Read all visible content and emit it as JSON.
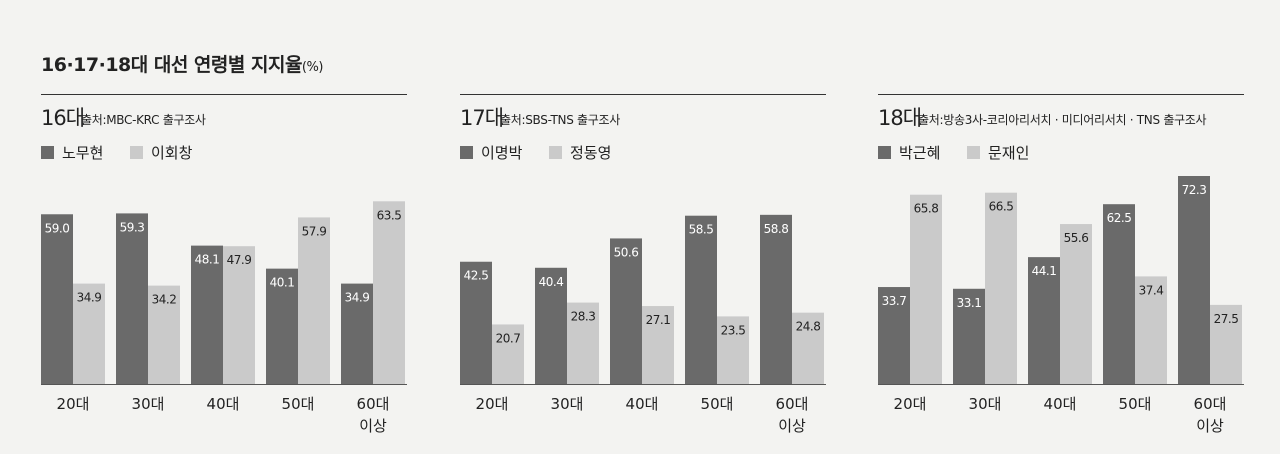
{
  "title": "16·17·18대 대선 연령별 지지율",
  "title_unit": "(%)",
  "chart_data": [
    {
      "type": "bar",
      "title": "16대",
      "subtitle": "출처:MBC-KRC 출구조사",
      "categories": [
        [
          "20대"
        ],
        [
          "30대"
        ],
        [
          "40대"
        ],
        [
          "50대"
        ],
        [
          "60대",
          "이상"
        ]
      ],
      "series": [
        {
          "name": "노무현",
          "color": "#6a6a6a",
          "values": [
            59.0,
            59.3,
            48.1,
            40.1,
            34.9
          ]
        },
        {
          "name": "이회창",
          "color": "#cacaca",
          "values": [
            34.9,
            34.2,
            47.9,
            57.9,
            63.5
          ]
        }
      ],
      "ylim": [
        0,
        72.3
      ],
      "grid": false,
      "legend": "top-left"
    },
    {
      "type": "bar",
      "title": "17대",
      "subtitle": "출처:SBS-TNS 출구조사",
      "categories": [
        [
          "20대"
        ],
        [
          "30대"
        ],
        [
          "40대"
        ],
        [
          "50대"
        ],
        [
          "60대",
          "이상"
        ]
      ],
      "series": [
        {
          "name": "이명박",
          "color": "#6a6a6a",
          "values": [
            42.5,
            40.4,
            50.6,
            58.5,
            58.8
          ]
        },
        {
          "name": "정동영",
          "color": "#cacaca",
          "values": [
            20.7,
            28.3,
            27.1,
            23.5,
            24.8
          ]
        }
      ],
      "ylim": [
        0,
        72.3
      ],
      "grid": false,
      "legend": "top-left"
    },
    {
      "type": "bar",
      "title": "18대",
      "subtitle": "출처:방송3사-코리아리서치 · 미디어리서치 · TNS 출구조사",
      "categories": [
        [
          "20대"
        ],
        [
          "30대"
        ],
        [
          "40대"
        ],
        [
          "50대"
        ],
        [
          "60대",
          "이상"
        ]
      ],
      "series": [
        {
          "name": "박근혜",
          "color": "#6a6a6a",
          "values": [
            33.7,
            33.1,
            44.1,
            62.5,
            72.3
          ]
        },
        {
          "name": "문재인",
          "color": "#cacaca",
          "values": [
            65.8,
            66.5,
            55.6,
            37.4,
            27.5
          ]
        }
      ],
      "ylim": [
        0,
        72.3
      ],
      "grid": false,
      "legend": "top-left"
    }
  ]
}
